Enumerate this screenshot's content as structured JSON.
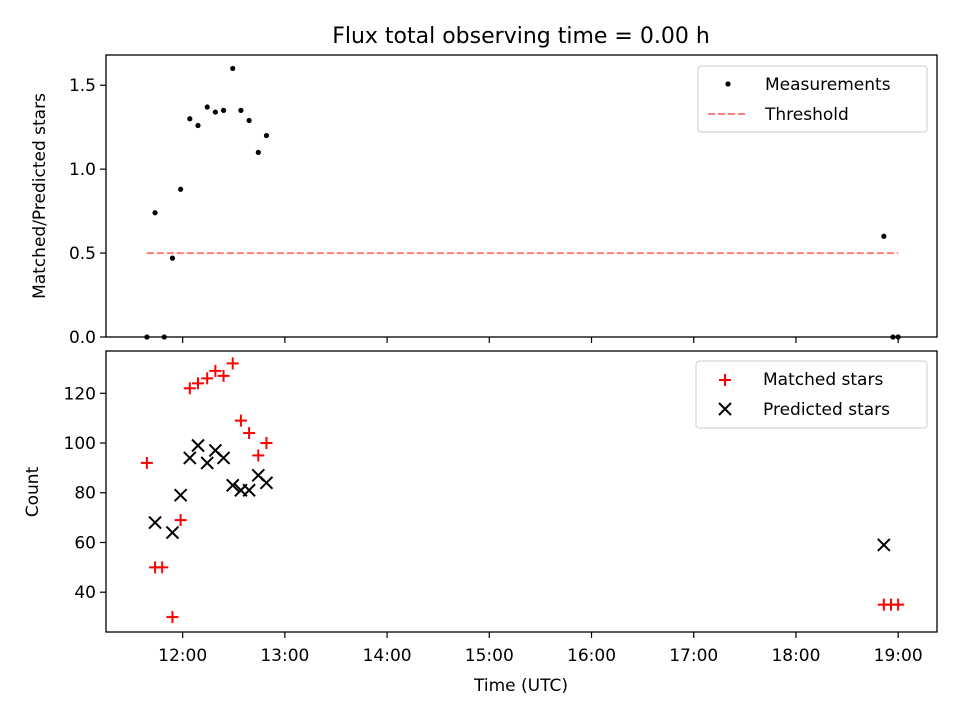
{
  "title": "Flux total observing time = 0.00 h",
  "xlabel": "Time (UTC)",
  "x_tick_labels": [
    "12:00",
    "13:00",
    "14:00",
    "15:00",
    "16:00",
    "17:00",
    "18:00",
    "19:00"
  ],
  "colors": {
    "measurements": "#000000",
    "threshold": "#ff7f7f",
    "matched": "#ff0000",
    "predicted": "#000000"
  },
  "chart_data": [
    {
      "type": "scatter",
      "ylabel": "Matched/Predicted stars",
      "x_unit": "hours UTC",
      "xlim": [
        11.25,
        19.38
      ],
      "ylim": [
        0,
        1.68
      ],
      "y_ticks": [
        0.0,
        0.5,
        1.0,
        1.5
      ],
      "y_tick_labels": [
        "0.0",
        "0.5",
        "1.0",
        "1.5"
      ],
      "legend_position": "top-right",
      "series": [
        {
          "name": "Measurements",
          "marker": "dot",
          "x": [
            11.65,
            11.73,
            11.82,
            11.9,
            11.98,
            12.07,
            12.15,
            12.24,
            12.32,
            12.4,
            12.49,
            12.57,
            12.65,
            12.74,
            12.82,
            18.86,
            18.95,
            19.0
          ],
          "y": [
            0.0,
            0.74,
            0.0,
            0.47,
            0.88,
            1.3,
            1.26,
            1.37,
            1.34,
            1.35,
            1.6,
            1.35,
            1.29,
            1.1,
            1.2,
            0.6,
            0.0,
            0.0
          ]
        },
        {
          "name": "Threshold",
          "marker": "dashed-line",
          "x": [
            11.65,
            19.0
          ],
          "y": [
            0.5,
            0.5
          ]
        }
      ]
    },
    {
      "type": "scatter",
      "ylabel": "Count",
      "x_unit": "hours UTC",
      "xlim": [
        11.25,
        19.38
      ],
      "ylim": [
        24,
        137
      ],
      "y_ticks": [
        40,
        60,
        80,
        100,
        120
      ],
      "y_tick_labels": [
        "40",
        "60",
        "80",
        "100",
        "120"
      ],
      "legend_position": "top-right",
      "series": [
        {
          "name": "Matched stars",
          "marker": "+",
          "x": [
            11.65,
            11.73,
            11.8,
            11.9,
            11.98,
            12.07,
            12.15,
            12.24,
            12.32,
            12.4,
            12.49,
            12.57,
            12.65,
            12.74,
            12.82,
            18.86,
            18.93,
            19.0
          ],
          "y": [
            92,
            50,
            50,
            30,
            69,
            122,
            124,
            126,
            129,
            127,
            132,
            109,
            104,
            95,
            100,
            35,
            35,
            35
          ]
        },
        {
          "name": "Predicted stars",
          "marker": "x",
          "x": [
            11.73,
            11.9,
            11.98,
            12.07,
            12.15,
            12.24,
            12.32,
            12.4,
            12.49,
            12.57,
            12.65,
            12.74,
            12.82,
            18.86
          ],
          "y": [
            68,
            64,
            79,
            94,
            99,
            92,
            97,
            94,
            83,
            81,
            81,
            87,
            84,
            59
          ]
        }
      ]
    }
  ]
}
